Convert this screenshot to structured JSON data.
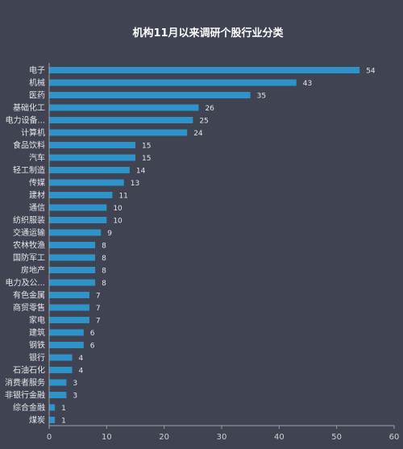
{
  "chart_data": {
    "type": "bar",
    "orientation": "horizontal",
    "title": "机构11月以来调研个股行业分类",
    "xlabel": "",
    "ylabel": "",
    "xlim": [
      0,
      60
    ],
    "xticks": [
      0,
      10,
      20,
      30,
      40,
      50,
      60
    ],
    "grid": false,
    "legend": "none",
    "bar_color": "#2e93c9",
    "categories": [
      "电子",
      "机械",
      "医药",
      "基础化工",
      "电力设备...",
      "计算机",
      "食品饮料",
      "汽车",
      "轻工制造",
      "传媒",
      "建材",
      "通信",
      "纺织服装",
      "交通运输",
      "农林牧渔",
      "国防军工",
      "房地产",
      "电力及公...",
      "有色金属",
      "商贸零售",
      "家电",
      "建筑",
      "钢铁",
      "银行",
      "石油石化",
      "消费者服务",
      "非银行金融",
      "综合金融",
      "煤炭"
    ],
    "values": [
      54,
      43,
      35,
      26,
      25,
      24,
      15,
      15,
      14,
      13,
      11,
      10,
      10,
      9,
      8,
      8,
      8,
      8,
      7,
      7,
      7,
      6,
      6,
      4,
      4,
      3,
      3,
      1,
      1
    ]
  }
}
